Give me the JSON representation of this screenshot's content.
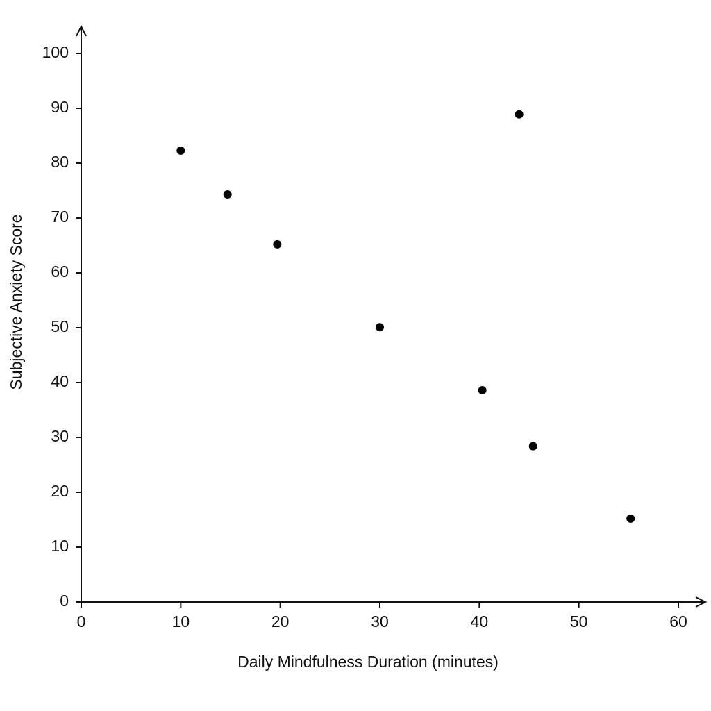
{
  "chart_data": {
    "type": "scatter",
    "x_label": "Daily Mindfulness Duration (minutes)",
    "y_label": "Subjective Anxiety Score",
    "x": [
      10,
      14.7,
      19.7,
      30,
      40.3,
      44,
      45.4,
      55.2
    ],
    "values": [
      82.3,
      74.3,
      65.2,
      50.1,
      38.6,
      88.9,
      28.4,
      15.2
    ],
    "color": "#000000",
    "xlim": [
      0,
      60
    ],
    "xticks": [
      0,
      10,
      20,
      30,
      40,
      50,
      60
    ],
    "ylim": [
      0,
      100
    ],
    "yticks": [
      0,
      10,
      20,
      30,
      40,
      50,
      60,
      70,
      80,
      90,
      100
    ],
    "grid": false
  }
}
